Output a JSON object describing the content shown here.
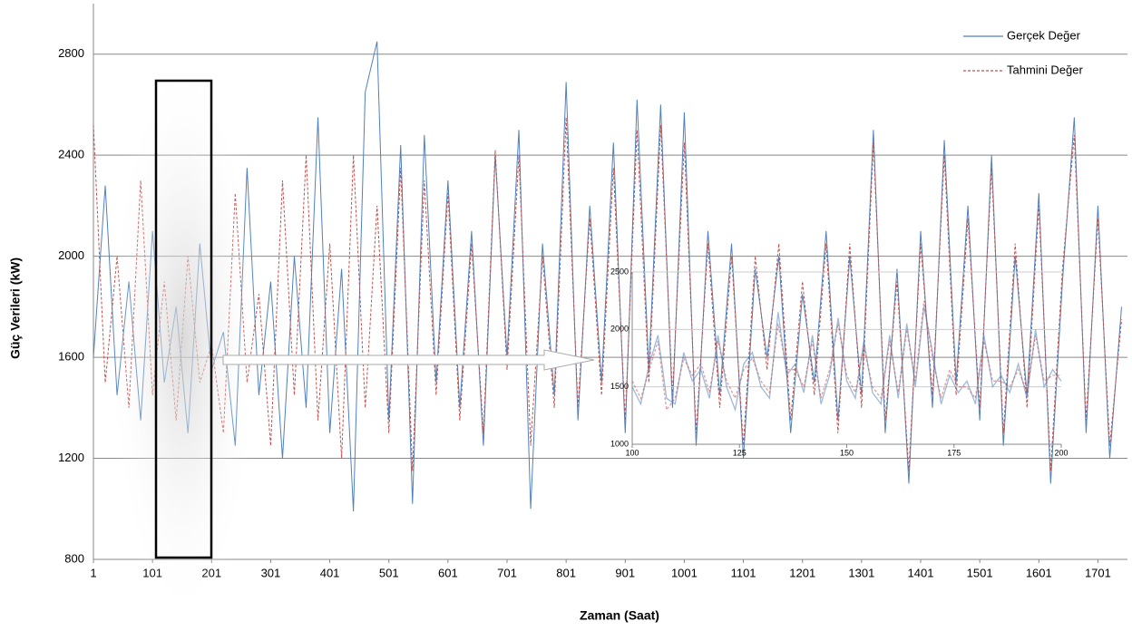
{
  "chart_data": [
    {
      "type": "line",
      "x_label": "Zaman (Saat)",
      "y_label": "Güç Verileri (kW)",
      "x": [
        1,
        21,
        41,
        61,
        81,
        101,
        121,
        141,
        161,
        181,
        201,
        221,
        241,
        261,
        281,
        301,
        321,
        341,
        361,
        381,
        401,
        421,
        441,
        461,
        481,
        501,
        521,
        541,
        561,
        581,
        601,
        621,
        641,
        661,
        681,
        701,
        721,
        741,
        761,
        781,
        801,
        821,
        841,
        861,
        881,
        901,
        921,
        941,
        961,
        981,
        1001,
        1021,
        1041,
        1061,
        1081,
        1101,
        1121,
        1141,
        1161,
        1181,
        1201,
        1221,
        1241,
        1261,
        1281,
        1301,
        1321,
        1341,
        1361,
        1381,
        1401,
        1421,
        1441,
        1461,
        1481,
        1501,
        1521,
        1541,
        1561,
        1581,
        1601,
        1621,
        1641,
        1661,
        1681,
        1701,
        1721,
        1741
      ],
      "series": [
        {
          "name": "Gerçek Değer",
          "color": "#4f81bd",
          "values": [
            1600,
            2280,
            1450,
            1900,
            1350,
            2100,
            1500,
            1800,
            1300,
            2050,
            1550,
            1700,
            1250,
            2350,
            1450,
            1900,
            1200,
            2000,
            1400,
            2550,
            1300,
            1950,
            990,
            2650,
            2850,
            1350,
            2440,
            1020,
            2480,
            1500,
            2300,
            1400,
            2100,
            1250,
            2400,
            1600,
            2500,
            1000,
            2050,
            1450,
            2690,
            1350,
            2200,
            1500,
            2450,
            1300,
            2620,
            1550,
            2600,
            1400,
            2570,
            1250,
            2100,
            1450,
            2050,
            1200,
            1950,
            1600,
            2000,
            1300,
            1850,
            1500,
            2100,
            1350,
            2000,
            1450,
            2500,
            1300,
            1950,
            1100,
            2100,
            1400,
            2460,
            1500,
            2200,
            1350,
            2400,
            1250,
            2000,
            1450,
            2250,
            1100,
            1900,
            2550,
            1300,
            2200,
            1200,
            1800
          ]
        },
        {
          "name": "Tahmini Değer",
          "color": "#c0504d",
          "dashed": true,
          "values": [
            2520,
            1500,
            2000,
            1400,
            2300,
            1450,
            1900,
            1350,
            2000,
            1500,
            1650,
            1300,
            2250,
            1500,
            1850,
            1250,
            2300,
            1450,
            2400,
            1350,
            2050,
            1200,
            2400,
            1400,
            2200,
            1300,
            2350,
            1150,
            2300,
            1450,
            2250,
            1350,
            2050,
            1300,
            2420,
            1550,
            2400,
            1250,
            2000,
            1400,
            2550,
            1400,
            2150,
            1450,
            2350,
            1350,
            2500,
            1500,
            2520,
            1450,
            2450,
            1300,
            2050,
            1400,
            2000,
            1250,
            2000,
            1550,
            2050,
            1350,
            1900,
            1450,
            2050,
            1300,
            2050,
            1400,
            2450,
            1350,
            1900,
            1150,
            2050,
            1450,
            2400,
            1450,
            2150,
            1400,
            2350,
            1300,
            2050,
            1400,
            2200,
            1150,
            1950,
            2480,
            1350,
            2150,
            1250,
            1750
          ]
        }
      ],
      "xlim": [
        1,
        1751
      ],
      "xticks": [
        1,
        101,
        201,
        301,
        401,
        501,
        601,
        701,
        801,
        901,
        1001,
        1101,
        1201,
        1301,
        1401,
        1501,
        1601,
        1701
      ],
      "ylim": [
        800,
        3000
      ],
      "yticks": [
        800,
        1200,
        1600,
        2000,
        2400,
        2800
      ],
      "grid": true,
      "legend_position": "top-right"
    },
    {
      "type": "line",
      "x": [
        100,
        102,
        104,
        106,
        108,
        110,
        112,
        114,
        116,
        118,
        120,
        122,
        124,
        126,
        128,
        130,
        132,
        134,
        136,
        138,
        140,
        142,
        144,
        146,
        148,
        150,
        152,
        154,
        156,
        158,
        160,
        162,
        164,
        166,
        168,
        170,
        172,
        174,
        176,
        178,
        180,
        182,
        184,
        186,
        188,
        190,
        192,
        194,
        196,
        198,
        200
      ],
      "series": [
        {
          "name": "Gerçek Değer",
          "color": "#4f81bd",
          "values": [
            1500,
            1350,
            1700,
            1950,
            1400,
            1350,
            1800,
            1550,
            1650,
            1400,
            1950,
            1500,
            1300,
            1700,
            1800,
            1500,
            1400,
            2150,
            1600,
            1700,
            1450,
            1950,
            1350,
            1600,
            2100,
            1550,
            1400,
            1900,
            1450,
            1350,
            1950,
            1400,
            2050,
            1500,
            2200,
            1800,
            1350,
            1600,
            1450,
            1550,
            1350,
            1950,
            1500,
            1600,
            1450,
            1700,
            1400,
            2000,
            1500,
            1650,
            1550
          ]
        },
        {
          "name": "Tahmini Değer",
          "color": "#c0504d",
          "dashed": true,
          "values": [
            1550,
            1400,
            1650,
            1900,
            1300,
            1400,
            1750,
            1600,
            1700,
            1450,
            1900,
            1550,
            1400,
            1650,
            1750,
            1550,
            1450,
            2050,
            1650,
            1650,
            1500,
            1900,
            1400,
            1650,
            2050,
            1600,
            1450,
            1850,
            1500,
            1400,
            1900,
            1450,
            2000,
            1550,
            2250,
            1750,
            1400,
            1650,
            1500,
            1500,
            1400,
            1900,
            1550,
            1550,
            1500,
            1650,
            1450,
            1950,
            1550,
            1600,
            1600
          ]
        }
      ],
      "xlim": [
        100,
        200
      ],
      "xticks": [
        100,
        125,
        150,
        175,
        200
      ],
      "ylim": [
        1000,
        2500
      ],
      "yticks": [
        1000,
        1500,
        2000,
        2500
      ],
      "grid": true
    }
  ]
}
